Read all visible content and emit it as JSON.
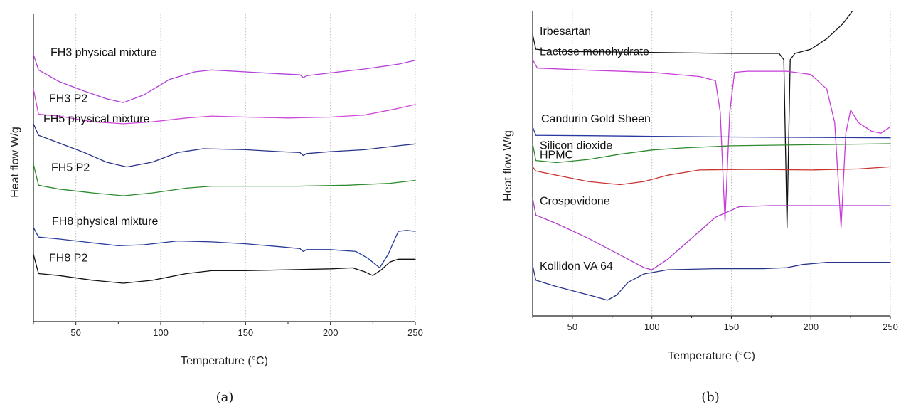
{
  "chart_data": [
    {
      "type": "line",
      "panel_label": "(a)",
      "xlabel": "Temperature (°C)",
      "ylabel": "Heat flow W/g",
      "xlim": [
        25,
        250
      ],
      "xticks": [
        50,
        100,
        150,
        200,
        250
      ],
      "yticks": [],
      "grid": "vertical dotted",
      "series": [
        {
          "name": "FH3 physical mixture",
          "color": "#b040d8",
          "points": [
            [
              25,
              0.84
            ],
            [
              28,
              0.76
            ],
            [
              40,
              0.7
            ],
            [
              55,
              0.65
            ],
            [
              68,
              0.61
            ],
            [
              78,
              0.59
            ],
            [
              90,
              0.63
            ],
            [
              105,
              0.71
            ],
            [
              120,
              0.75
            ],
            [
              130,
              0.76
            ],
            [
              150,
              0.75
            ],
            [
              170,
              0.74
            ],
            [
              182,
              0.735
            ],
            [
              184,
              0.72
            ],
            [
              186,
              0.73
            ],
            [
              200,
              0.745
            ],
            [
              220,
              0.765
            ],
            [
              240,
              0.79
            ],
            [
              250,
              0.81
            ]
          ]
        },
        {
          "name": "FH3 P2",
          "color": "#d04ad8",
          "points": [
            [
              25,
              0.66
            ],
            [
              28,
              0.53
            ],
            [
              40,
              0.52
            ],
            [
              60,
              0.49
            ],
            [
              78,
              0.48
            ],
            [
              95,
              0.49
            ],
            [
              115,
              0.51
            ],
            [
              130,
              0.52
            ],
            [
              150,
              0.515
            ],
            [
              175,
              0.51
            ],
            [
              200,
              0.515
            ],
            [
              220,
              0.525
            ],
            [
              240,
              0.56
            ],
            [
              250,
              0.58
            ]
          ]
        },
        {
          "name": "FH5 physical mixture",
          "color": "#28348a",
          "points": [
            [
              25,
              0.48
            ],
            [
              28,
              0.42
            ],
            [
              40,
              0.38
            ],
            [
              55,
              0.33
            ],
            [
              68,
              0.28
            ],
            [
              80,
              0.255
            ],
            [
              95,
              0.28
            ],
            [
              110,
              0.33
            ],
            [
              125,
              0.35
            ],
            [
              150,
              0.345
            ],
            [
              170,
              0.335
            ],
            [
              182,
              0.33
            ],
            [
              184,
              0.315
            ],
            [
              186,
              0.325
            ],
            [
              200,
              0.335
            ],
            [
              220,
              0.345
            ],
            [
              240,
              0.365
            ],
            [
              250,
              0.375
            ]
          ]
        },
        {
          "name": "FH5 P2",
          "color": "#2e8a2e",
          "points": [
            [
              25,
              0.27
            ],
            [
              28,
              0.16
            ],
            [
              40,
              0.14
            ],
            [
              60,
              0.12
            ],
            [
              78,
              0.105
            ],
            [
              95,
              0.12
            ],
            [
              115,
              0.145
            ],
            [
              130,
              0.155
            ],
            [
              150,
              0.155
            ],
            [
              180,
              0.155
            ],
            [
              210,
              0.16
            ],
            [
              235,
              0.17
            ],
            [
              250,
              0.185
            ]
          ]
        },
        {
          "name": "FH8 physical mixture",
          "color": "#283c9a",
          "points": [
            [
              25,
              -0.06
            ],
            [
              28,
              -0.11
            ],
            [
              40,
              -0.12
            ],
            [
              60,
              -0.14
            ],
            [
              75,
              -0.155
            ],
            [
              90,
              -0.15
            ],
            [
              110,
              -0.13
            ],
            [
              130,
              -0.135
            ],
            [
              150,
              -0.145
            ],
            [
              170,
              -0.16
            ],
            [
              182,
              -0.17
            ],
            [
              184,
              -0.185
            ],
            [
              186,
              -0.175
            ],
            [
              200,
              -0.175
            ],
            [
              215,
              -0.185
            ],
            [
              222,
              -0.22
            ],
            [
              229,
              -0.27
            ],
            [
              234,
              -0.2
            ],
            [
              240,
              -0.08
            ],
            [
              245,
              -0.075
            ],
            [
              250,
              -0.08
            ]
          ]
        },
        {
          "name": "FH8 P2",
          "color": "#111111",
          "points": [
            [
              25,
              -0.2
            ],
            [
              28,
              -0.3
            ],
            [
              40,
              -0.31
            ],
            [
              60,
              -0.335
            ],
            [
              78,
              -0.35
            ],
            [
              95,
              -0.335
            ],
            [
              115,
              -0.3
            ],
            [
              130,
              -0.285
            ],
            [
              150,
              -0.285
            ],
            [
              175,
              -0.28
            ],
            [
              200,
              -0.275
            ],
            [
              213,
              -0.27
            ],
            [
              220,
              -0.29
            ],
            [
              225,
              -0.31
            ],
            [
              230,
              -0.28
            ],
            [
              235,
              -0.24
            ],
            [
              240,
              -0.225
            ],
            [
              250,
              -0.225
            ]
          ]
        }
      ]
    },
    {
      "type": "line",
      "panel_label": "(b)",
      "xlabel": "Temperature (°C)",
      "ylabel": "Heat flow W/g",
      "xlim": [
        25,
        250
      ],
      "xticks": [
        50,
        100,
        150,
        200,
        250
      ],
      "yticks": [],
      "grid": "vertical dotted",
      "series": [
        {
          "name": "Irbesartan",
          "color": "#111111",
          "points": [
            [
              25,
              0.92
            ],
            [
              27,
              0.85
            ],
            [
              40,
              0.84
            ],
            [
              100,
              0.835
            ],
            [
              150,
              0.83
            ],
            [
              180,
              0.83
            ],
            [
              183,
              0.8
            ],
            [
              185,
              0.0
            ],
            [
              187,
              0.8
            ],
            [
              190,
              0.83
            ],
            [
              200,
              0.85
            ],
            [
              210,
              0.9
            ],
            [
              220,
              0.97
            ],
            [
              226,
              1.03
            ]
          ]
        },
        {
          "name": "Lactose monohydrate",
          "color": "#c83cd8",
          "points": [
            [
              25,
              0.8
            ],
            [
              28,
              0.76
            ],
            [
              60,
              0.75
            ],
            [
              100,
              0.74
            ],
            [
              130,
              0.72
            ],
            [
              140,
              0.7
            ],
            [
              143,
              0.55
            ],
            [
              146,
              0.03
            ],
            [
              149,
              0.55
            ],
            [
              152,
              0.74
            ],
            [
              160,
              0.745
            ],
            [
              185,
              0.745
            ],
            [
              200,
              0.73
            ],
            [
              210,
              0.66
            ],
            [
              215,
              0.5
            ],
            [
              219,
              0.0
            ],
            [
              222,
              0.45
            ],
            [
              225,
              0.56
            ],
            [
              230,
              0.5
            ],
            [
              238,
              0.46
            ],
            [
              244,
              0.45
            ],
            [
              250,
              0.48
            ]
          ]
        },
        {
          "name": "Candurin Gold Sheen",
          "color": "#2838a0",
          "points": [
            [
              25,
              0.48
            ],
            [
              27,
              0.44
            ],
            [
              60,
              0.438
            ],
            [
              100,
              0.435
            ],
            [
              150,
              0.432
            ],
            [
              200,
              0.43
            ],
            [
              250,
              0.428
            ]
          ]
        },
        {
          "name": "Silicon dioxide",
          "color": "#2e8a2e",
          "points": [
            [
              25,
              0.4
            ],
            [
              27,
              0.32
            ],
            [
              40,
              0.31
            ],
            [
              60,
              0.325
            ],
            [
              80,
              0.35
            ],
            [
              100,
              0.37
            ],
            [
              120,
              0.38
            ],
            [
              150,
              0.39
            ],
            [
              200,
              0.395
            ],
            [
              250,
              0.4
            ]
          ]
        },
        {
          "name": "HPMC",
          "color": "#c83232",
          "points": [
            [
              25,
              0.29
            ],
            [
              27,
              0.27
            ],
            [
              40,
              0.25
            ],
            [
              60,
              0.22
            ],
            [
              80,
              0.205
            ],
            [
              95,
              0.22
            ],
            [
              110,
              0.25
            ],
            [
              130,
              0.275
            ],
            [
              160,
              0.278
            ],
            [
              200,
              0.275
            ],
            [
              230,
              0.28
            ],
            [
              250,
              0.29
            ]
          ]
        },
        {
          "name": "Crospovidone",
          "color": "#b03ccc",
          "points": [
            [
              25,
              0.14
            ],
            [
              27,
              0.06
            ],
            [
              40,
              0.02
            ],
            [
              60,
              -0.05
            ],
            [
              80,
              -0.13
            ],
            [
              95,
              -0.19
            ],
            [
              100,
              -0.2
            ],
            [
              110,
              -0.15
            ],
            [
              125,
              -0.05
            ],
            [
              140,
              0.05
            ],
            [
              155,
              0.1
            ],
            [
              175,
              0.105
            ],
            [
              200,
              0.105
            ],
            [
              250,
              0.105
            ]
          ]
        },
        {
          "name": "Kollidon VA 64",
          "color": "#28348a",
          "points": [
            [
              25,
              -0.18
            ],
            [
              27,
              -0.25
            ],
            [
              40,
              -0.28
            ],
            [
              55,
              -0.31
            ],
            [
              65,
              -0.33
            ],
            [
              72,
              -0.345
            ],
            [
              78,
              -0.32
            ],
            [
              85,
              -0.26
            ],
            [
              95,
              -0.22
            ],
            [
              110,
              -0.2
            ],
            [
              140,
              -0.195
            ],
            [
              170,
              -0.195
            ],
            [
              185,
              -0.19
            ],
            [
              195,
              -0.175
            ],
            [
              210,
              -0.165
            ],
            [
              250,
              -0.165
            ]
          ]
        }
      ]
    }
  ]
}
